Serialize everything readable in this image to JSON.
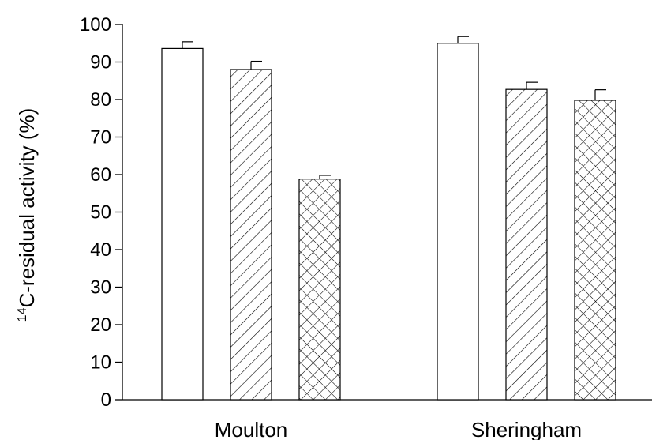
{
  "chart_data": {
    "type": "bar",
    "categories": [
      "Moulton",
      "Sheringham"
    ],
    "series": [
      {
        "pattern": "none",
        "values": [
          93.6,
          95.0
        ],
        "errors": [
          1.8,
          1.8
        ]
      },
      {
        "pattern": "diagonal-hatch",
        "values": [
          88.0,
          82.7
        ],
        "errors": [
          2.2,
          1.9
        ]
      },
      {
        "pattern": "cross-hatch",
        "values": [
          58.8,
          79.8
        ],
        "errors": [
          1.0,
          2.8
        ]
      }
    ],
    "ylabel": {
      "superscript": "14",
      "text": "C-residual activity (%)"
    },
    "xlabel": "",
    "ylim": [
      0,
      100
    ],
    "yticks": [
      0,
      10,
      20,
      30,
      40,
      50,
      60,
      70,
      80,
      90,
      100
    ],
    "grid": false,
    "legend": "none"
  }
}
